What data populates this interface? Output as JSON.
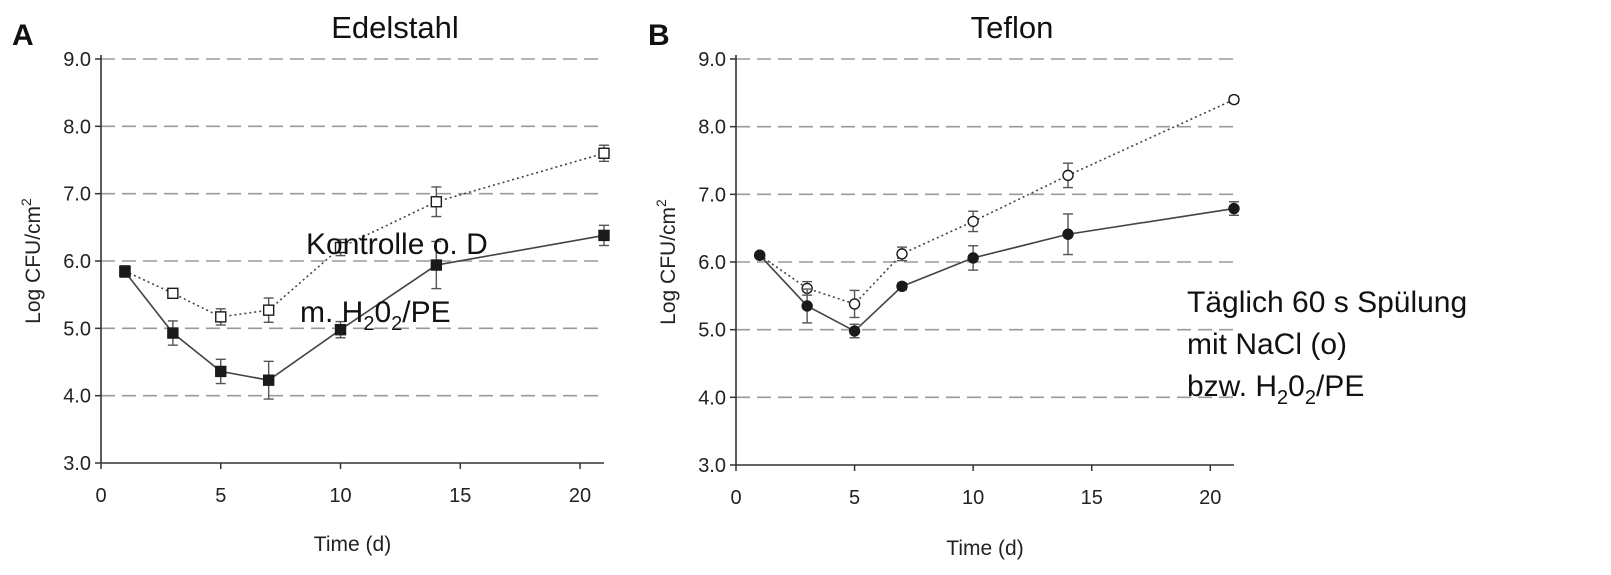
{
  "chart_data": [
    {
      "type": "line",
      "panel": "A",
      "title": "Edelstahl",
      "xlabel": "Time (d)",
      "ylabel": "Log CFU/cm",
      "ylabel_sup": "2",
      "xlim": [
        0,
        21
      ],
      "ylim": [
        3.0,
        9.0
      ],
      "xticks": [
        "0",
        "5",
        "10",
        "15",
        "20"
      ],
      "yticks": [
        "3.0",
        "4.0",
        "5.0",
        "6.0",
        "7.0",
        "8.0",
        "9.0"
      ],
      "grid": "horizontal dashed",
      "series": [
        {
          "marker": "open-square",
          "line": "dotted",
          "x": [
            1,
            3,
            5,
            7,
            10,
            14,
            21
          ],
          "y": [
            5.85,
            5.52,
            5.17,
            5.27,
            6.2,
            6.88,
            7.6
          ],
          "err": [
            0.08,
            0.06,
            0.12,
            0.18,
            0.12,
            0.22,
            0.12
          ]
        },
        {
          "marker": "filled-square",
          "line": "solid",
          "x": [
            1,
            3,
            5,
            7,
            10,
            14,
            21
          ],
          "y": [
            5.84,
            4.93,
            4.36,
            4.23,
            4.98,
            5.94,
            6.38
          ],
          "err": [
            0.08,
            0.18,
            0.18,
            0.28,
            0.12,
            0.35,
            0.15
          ]
        }
      ],
      "annotations": [
        {
          "text": "Kontrolle o. D"
        },
        {
          "text": "m. H",
          "sub1": "2",
          "mid": "0",
          "sub2": "2",
          "tail": "/PE"
        }
      ]
    },
    {
      "type": "line",
      "panel": "B",
      "title": "Teflon",
      "xlabel": "Time (d)",
      "ylabel": "Log CFU/cm",
      "ylabel_sup": "2",
      "xlim": [
        0,
        21
      ],
      "ylim": [
        3.0,
        9.0
      ],
      "xticks": [
        "0",
        "5",
        "10",
        "15",
        "20"
      ],
      "yticks": [
        "3.0",
        "4.0",
        "5.0",
        "6.0",
        "7.0",
        "8.0",
        "9.0"
      ],
      "grid": "horizontal dashed",
      "series": [
        {
          "marker": "open-circle",
          "line": "dotted",
          "x": [
            1,
            3,
            5,
            7,
            10,
            14,
            21
          ],
          "y": [
            6.1,
            5.61,
            5.38,
            6.12,
            6.6,
            7.28,
            8.4
          ],
          "err": [
            0.04,
            0.1,
            0.2,
            0.1,
            0.15,
            0.18,
            0.05
          ]
        },
        {
          "marker": "filled-circle",
          "line": "solid",
          "x": [
            1,
            3,
            5,
            7,
            10,
            14,
            21
          ],
          "y": [
            6.1,
            5.35,
            4.98,
            5.64,
            6.06,
            6.41,
            6.79
          ],
          "err": [
            0.04,
            0.25,
            0.1,
            0.05,
            0.18,
            0.3,
            0.1
          ]
        }
      ],
      "annotations": [
        {
          "text": "Täglich 60 s Spülung"
        },
        {
          "text": "mit NaCl (o)"
        },
        {
          "text": "bzw. H",
          "sub1": "2",
          "mid": "0",
          "sub2": "2",
          "tail": "/PE"
        }
      ]
    }
  ]
}
